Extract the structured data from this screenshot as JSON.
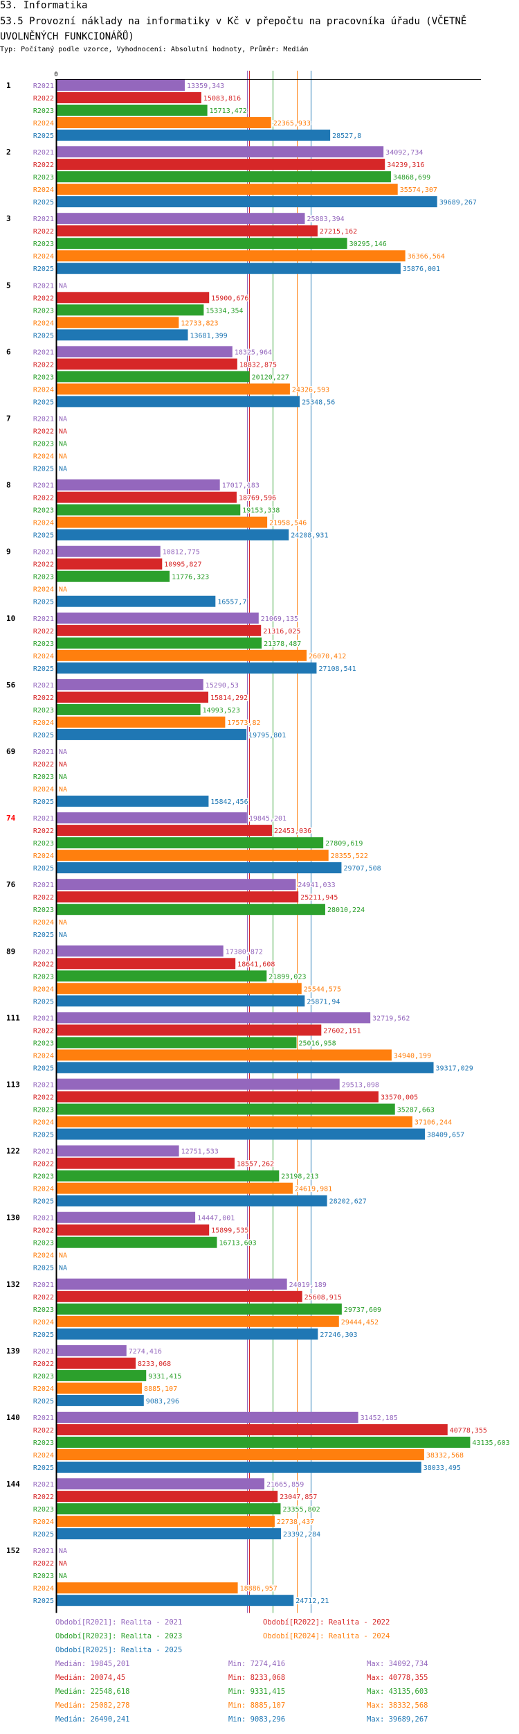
{
  "header": {
    "section": "53. Informatika",
    "title": "53.5 Provozní náklady na informatiky v Kč v přepočtu na pracovníka úřadu (VČETNĚ UVOLNĚNÝCH FUNKCIONÁŘŮ)",
    "subtitle": "Typ: Počítaný podle vzorce, Vyhodnocení: Absolutní hodnoty, Průměr: Medián"
  },
  "chart_data": {
    "type": "bar",
    "orientation": "horizontal",
    "title": "53.5 Provozní náklady na informatiky v Kč v přepočtu na pracovníka úřadu (VČETNĚ UVOLNĚNÝCH FUNKCIONÁŘŮ)",
    "axis_zero_label": "0",
    "xlim": [
      0,
      45000
    ],
    "series_names": [
      "R2021",
      "R2022",
      "R2023",
      "R2024",
      "R2025"
    ],
    "colors": {
      "R2021": "#9467bd",
      "R2022": "#d62728",
      "R2023": "#2ca02c",
      "R2024": "#ff7f0e",
      "R2025": "#1f77b4"
    },
    "highlight_color": "#ff0000",
    "groups": [
      {
        "label": "1",
        "values": [
          13359.343,
          15083.816,
          15713.472,
          22365.933,
          28527.8
        ],
        "texts": [
          "13359,343",
          "15083,816",
          "15713,472",
          "22365,933",
          "28527,8"
        ]
      },
      {
        "label": "2",
        "values": [
          34092.734,
          34239.316,
          34868.699,
          35574.307,
          39689.267
        ],
        "texts": [
          "34092,734",
          "34239,316",
          "34868,699",
          "35574,307",
          "39689,267"
        ]
      },
      {
        "label": "3",
        "values": [
          25883.394,
          27215.162,
          30295.146,
          36366.564,
          35876.001
        ],
        "texts": [
          "25883,394",
          "27215,162",
          "30295,146",
          "36366,564",
          "35876,001"
        ]
      },
      {
        "label": "5",
        "values": [
          null,
          15900.676,
          15334.354,
          12733.823,
          13681.399
        ],
        "texts": [
          "NA",
          "15900,676",
          "15334,354",
          "12733,823",
          "13681,399"
        ]
      },
      {
        "label": "6",
        "values": [
          18325.964,
          18832.875,
          20120.227,
          24326.593,
          25348.56
        ],
        "texts": [
          "18325,964",
          "18832,875",
          "20120,227",
          "24326,593",
          "25348,56"
        ]
      },
      {
        "label": "7",
        "values": [
          null,
          null,
          null,
          null,
          null
        ],
        "texts": [
          "NA",
          "NA",
          "NA",
          "NA",
          "NA"
        ]
      },
      {
        "label": "8",
        "values": [
          17017.183,
          18769.596,
          19153.338,
          21958.546,
          24208.931
        ],
        "texts": [
          "17017,183",
          "18769,596",
          "19153,338",
          "21958,546",
          "24208,931"
        ]
      },
      {
        "label": "9",
        "values": [
          10812.775,
          10995.827,
          11776.323,
          null,
          16557.7
        ],
        "texts": [
          "10812,775",
          "10995,827",
          "11776,323",
          "NA",
          "16557,7"
        ]
      },
      {
        "label": "10",
        "values": [
          21069.135,
          21316.025,
          21378.487,
          26070.412,
          27108.541
        ],
        "texts": [
          "21069,135",
          "21316,025",
          "21378,487",
          "26070,412",
          "27108,541"
        ]
      },
      {
        "label": "56",
        "values": [
          15290.53,
          15814.292,
          14993.523,
          17573.82,
          19795.801
        ],
        "texts": [
          "15290,53",
          "15814,292",
          "14993,523",
          "17573,82",
          "19795,801"
        ]
      },
      {
        "label": "69",
        "values": [
          null,
          null,
          null,
          null,
          15842.456
        ],
        "texts": [
          "NA",
          "NA",
          "NA",
          "NA",
          "15842,456"
        ]
      },
      {
        "label": "74",
        "highlight": true,
        "values": [
          19845.201,
          22453.036,
          27809.619,
          28355.522,
          29707.508
        ],
        "texts": [
          "19845,201",
          "22453,036",
          "27809,619",
          "28355,522",
          "29707,508"
        ]
      },
      {
        "label": "76",
        "values": [
          24941.033,
          25211.945,
          28010.224,
          null,
          null
        ],
        "texts": [
          "24941,033",
          "25211,945",
          "28010,224",
          "NA",
          "NA"
        ]
      },
      {
        "label": "89",
        "values": [
          17380.872,
          18641.608,
          21899.023,
          25544.575,
          25871.94
        ],
        "texts": [
          "17380,872",
          "18641,608",
          "21899,023",
          "25544,575",
          "25871,94"
        ]
      },
      {
        "label": "111",
        "values": [
          32719.562,
          27602.151,
          25016.958,
          34940.199,
          39317.029
        ],
        "texts": [
          "32719,562",
          "27602,151",
          "25016,958",
          "34940,199",
          "39317,029"
        ]
      },
      {
        "label": "113",
        "values": [
          29513.098,
          33570.005,
          35287.663,
          37106.244,
          38409.657
        ],
        "texts": [
          "29513,098",
          "33570,005",
          "35287,663",
          "37106,244",
          "38409,657"
        ]
      },
      {
        "label": "122",
        "values": [
          12751.533,
          18557.262,
          23198.213,
          24619.981,
          28202.627
        ],
        "texts": [
          "12751,533",
          "18557,262",
          "23198,213",
          "24619,981",
          "28202,627"
        ]
      },
      {
        "label": "130",
        "values": [
          14447.001,
          15899.535,
          16713.603,
          null,
          null
        ],
        "texts": [
          "14447,001",
          "15899,535",
          "16713,603",
          "NA",
          "NA"
        ]
      },
      {
        "label": "132",
        "values": [
          24019.189,
          25608.915,
          29737.609,
          29444.452,
          27246.303
        ],
        "texts": [
          "24019,189",
          "25608,915",
          "29737,609",
          "29444,452",
          "27246,303"
        ]
      },
      {
        "label": "139",
        "values": [
          7274.416,
          8233.068,
          9331.415,
          8885.107,
          9083.296
        ],
        "texts": [
          "7274,416",
          "8233,068",
          "9331,415",
          "8885,107",
          "9083,296"
        ]
      },
      {
        "label": "140",
        "values": [
          31452.185,
          40778.355,
          43135.603,
          38332.568,
          38033.495
        ],
        "texts": [
          "31452,185",
          "40778,355",
          "43135,603",
          "38332,568",
          "38033,495"
        ]
      },
      {
        "label": "144",
        "values": [
          21665.859,
          23047.857,
          23355.802,
          22738.437,
          23392.284
        ],
        "texts": [
          "21665,859",
          "23047,857",
          "23355,802",
          "22738,437",
          "23392,284"
        ]
      },
      {
        "label": "152",
        "values": [
          null,
          null,
          null,
          18886.957,
          24712.21
        ],
        "texts": [
          "NA",
          "NA",
          "NA",
          "18886,957",
          "24712,21"
        ]
      }
    ],
    "medians": [
      19845.201,
      20074.45,
      22548.618,
      25082.278,
      26490.241
    ],
    "legend": [
      "Období[R2021]: Realita - 2021",
      "Období[R2022]: Realita - 2022",
      "Období[R2023]: Realita - 2023",
      "Období[R2024]: Realita - 2024",
      "Období[R2025]: Realita - 2025"
    ],
    "stats": [
      {
        "median": "Medián: 19845,201",
        "min": "Min: 7274,416",
        "max": "Max: 34092,734"
      },
      {
        "median": "Medián: 20074,45",
        "min": "Min: 8233,068",
        "max": "Max: 40778,355"
      },
      {
        "median": "Medián: 22548,618",
        "min": "Min: 9331,415",
        "max": "Max: 43135,603"
      },
      {
        "median": "Medián: 25082,278",
        "min": "Min: 8885,107",
        "max": "Max: 38332,568"
      },
      {
        "median": "Medián: 26490,241",
        "min": "Min: 9083,296",
        "max": "Max: 39689,267"
      }
    ]
  }
}
